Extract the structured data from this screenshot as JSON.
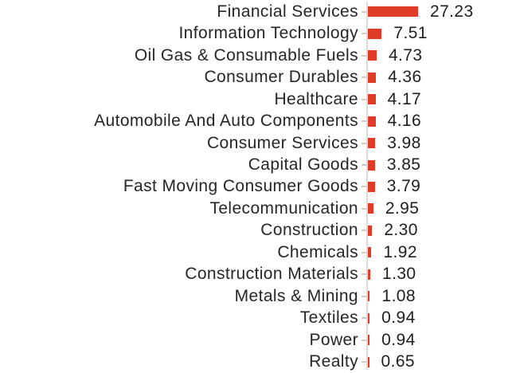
{
  "chart_data": {
    "type": "bar",
    "orientation": "horizontal",
    "title": "",
    "xlabel": "",
    "ylabel": "",
    "grid": false,
    "legend": false,
    "xlim": [
      0,
      30
    ],
    "categories": [
      "Financial Services",
      "Information Technology",
      "Oil Gas & Consumable Fuels",
      "Consumer Durables",
      "Healthcare",
      "Automobile And Auto Components",
      "Consumer Services",
      "Capital Goods",
      "Fast Moving Consumer Goods",
      "Telecommunication",
      "Construction",
      "Chemicals",
      "Construction Materials",
      "Metals & Mining",
      "Textiles",
      "Power",
      "Realty"
    ],
    "values": [
      27.23,
      7.51,
      4.73,
      4.36,
      4.17,
      4.16,
      3.98,
      3.85,
      3.79,
      2.95,
      2.3,
      1.92,
      1.3,
      1.08,
      0.94,
      0.94,
      0.65
    ],
    "value_labels": [
      "27.23",
      "7.51",
      "4.73",
      "4.36",
      "4.17",
      "4.16",
      "3.98",
      "3.85",
      "3.79",
      "2.95",
      "2.30",
      "1.92",
      "1.30",
      "1.08",
      "0.94",
      "0.94",
      "0.65"
    ],
    "colors": {
      "bar": "#df3b28",
      "axis_line": "#dcdcdc",
      "tick": "#cccccc",
      "category_text": "#262626",
      "value_text": "#1f1f1f",
      "background": "#ffffff"
    }
  }
}
